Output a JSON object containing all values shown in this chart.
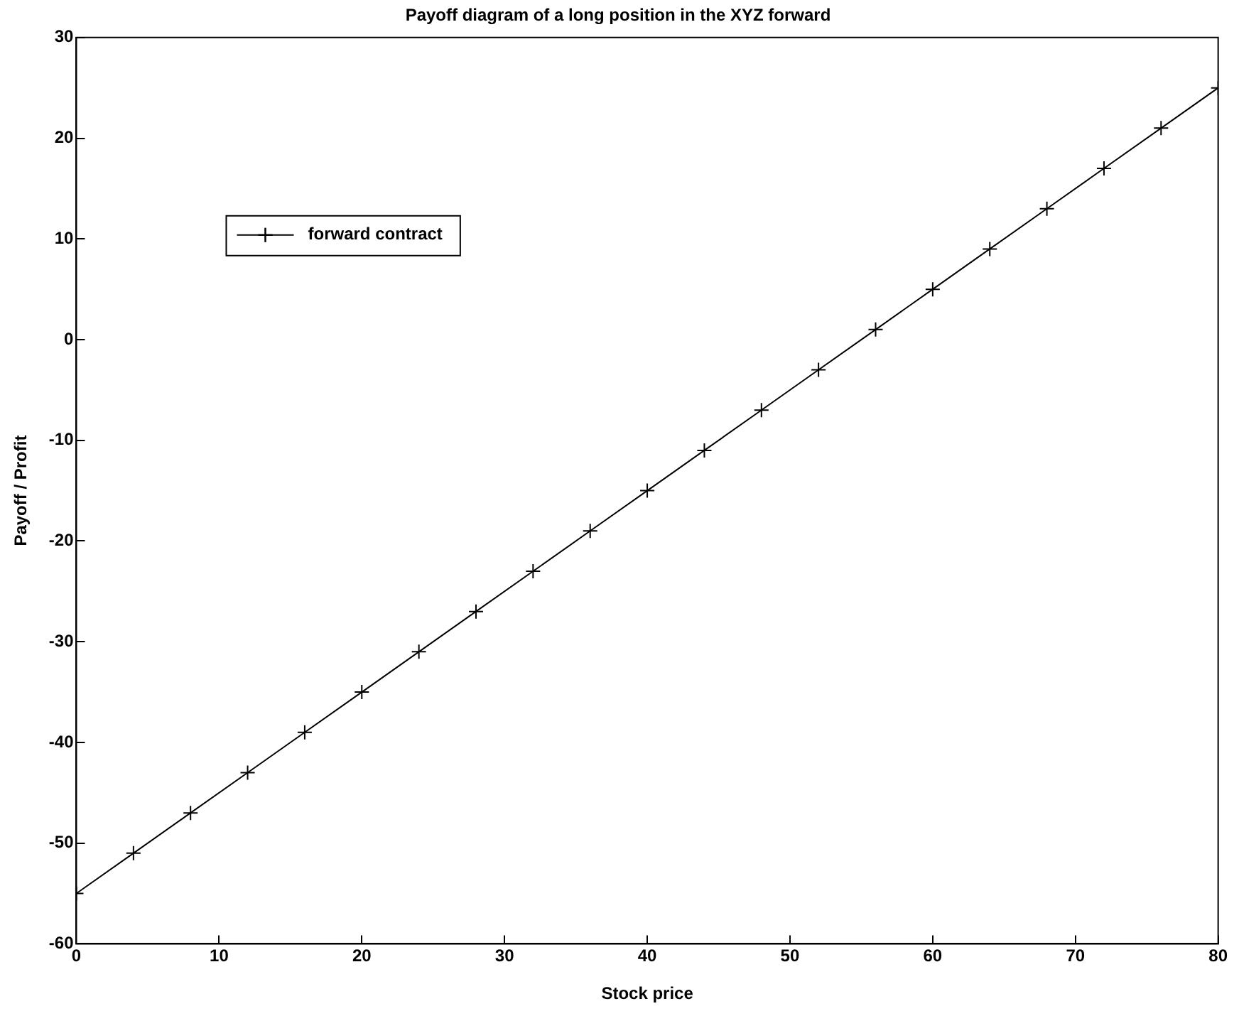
{
  "chart_data": {
    "type": "line",
    "title": "Payoff diagram of a long position in the XYZ forward",
    "xlabel": "Stock price",
    "ylabel": "Payoff / Profit",
    "x": [
      0,
      4,
      8,
      12,
      16,
      20,
      24,
      28,
      32,
      36,
      40,
      44,
      48,
      52,
      56,
      60,
      64,
      68,
      72,
      76,
      80
    ],
    "series": [
      {
        "name": "forward contract",
        "color": "#000000",
        "values": [
          -55,
          -51,
          -47,
          -43,
          -39,
          -35,
          -31,
          -27,
          -23,
          -19,
          -15,
          -11,
          -7,
          -3,
          1,
          5,
          9,
          13,
          17,
          21,
          25
        ]
      }
    ],
    "xlim": [
      0,
      80
    ],
    "xticks": [
      0,
      10,
      20,
      30,
      40,
      50,
      60,
      70,
      80
    ],
    "ylim": [
      -60,
      30
    ],
    "yticks": [
      -60,
      -50,
      -40,
      -30,
      -20,
      -10,
      0,
      10,
      20,
      30
    ],
    "grid": false,
    "legend": "top left",
    "marker": "cross",
    "line_style": "solid"
  }
}
